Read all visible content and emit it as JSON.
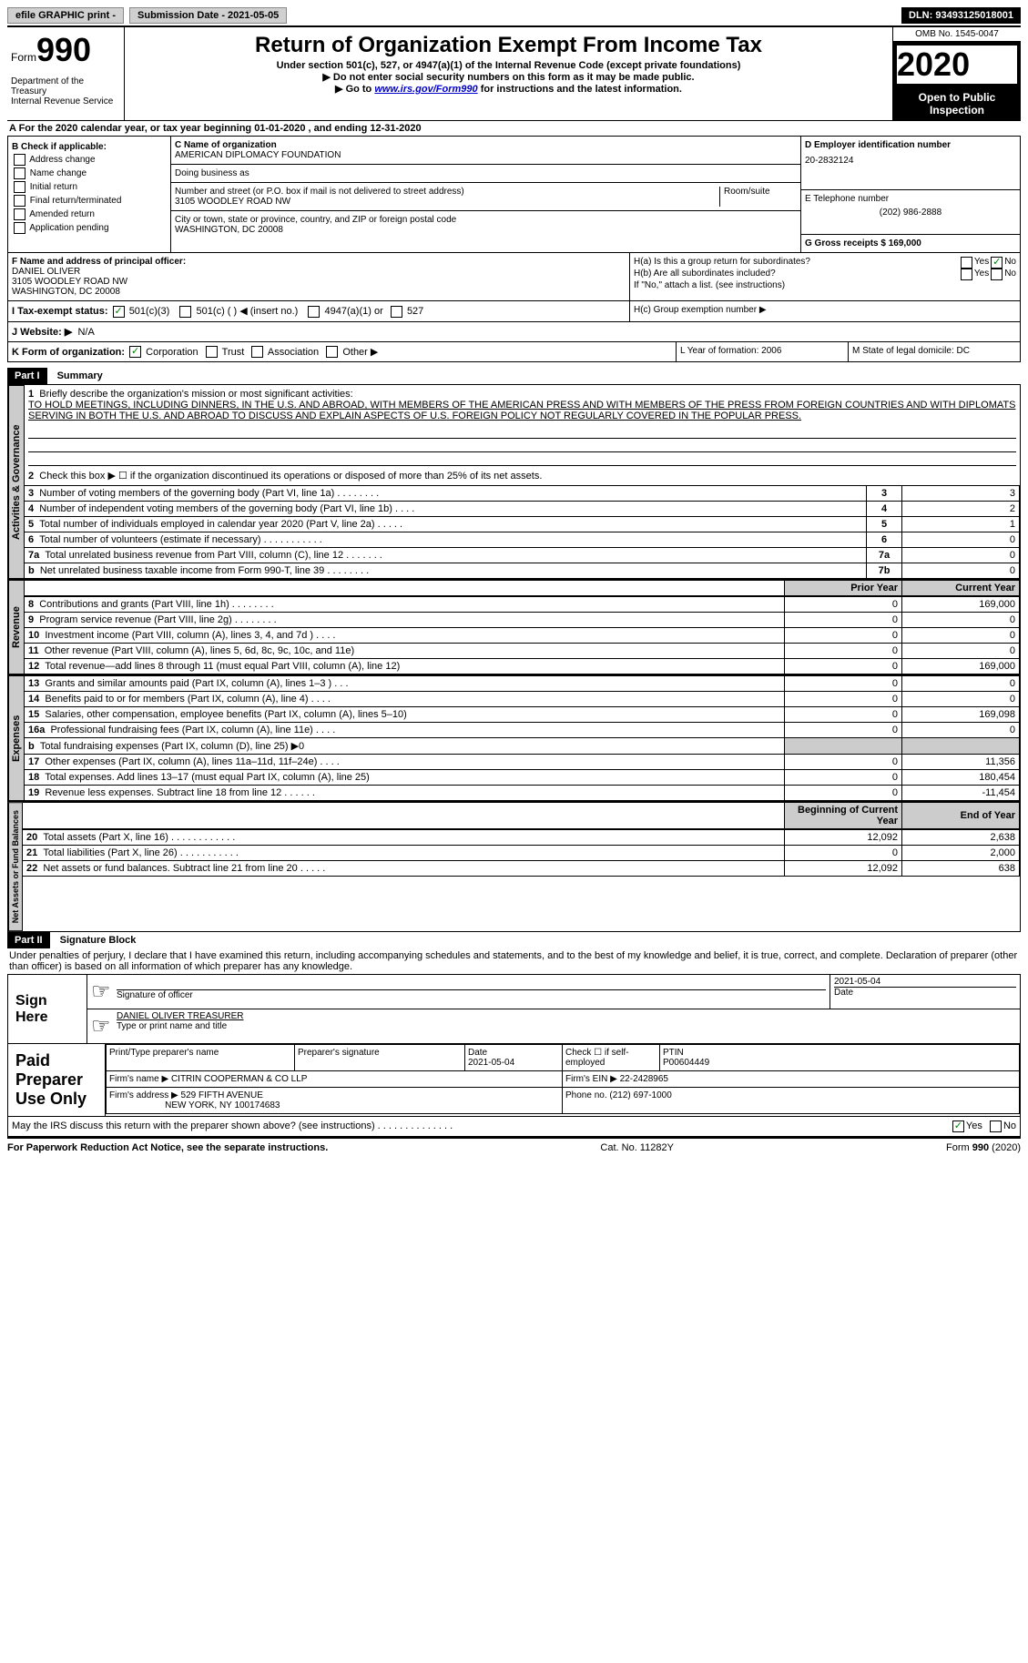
{
  "top_bar": {
    "efile": "efile GRAPHIC print -",
    "submission": "Submission Date - 2021-05-05",
    "dln": "DLN: 93493125018001"
  },
  "header": {
    "form_prefix": "Form",
    "form_num": "990",
    "dept": "Department of the Treasury\nInternal Revenue Service",
    "title": "Return of Organization Exempt From Income Tax",
    "subtitle": "Under section 501(c), 527, or 4947(a)(1) of the Internal Revenue Code (except private foundations)",
    "instr1": "▶ Do not enter social security numbers on this form as it may be made public.",
    "instr2_pre": "▶ Go to ",
    "instr2_link": "www.irs.gov/Form990",
    "instr2_post": " for instructions and the latest information.",
    "omb": "OMB No. 1545-0047",
    "year": "2020",
    "inspect": "Open to Public Inspection"
  },
  "section_a": "A For the 2020 calendar year, or tax year beginning 01-01-2020    , and ending 12-31-2020",
  "box_b": {
    "label": "B Check if applicable:",
    "opts": [
      "Address change",
      "Name change",
      "Initial return",
      "Final return/terminated",
      "Amended return",
      "Application pending"
    ]
  },
  "box_c": {
    "name_label": "C Name of organization",
    "name": "AMERICAN DIPLOMACY FOUNDATION",
    "dba_label": "Doing business as",
    "addr_label": "Number and street (or P.O. box if mail is not delivered to street address)",
    "room_label": "Room/suite",
    "addr": "3105 WOODLEY ROAD NW",
    "city_label": "City or town, state or province, country, and ZIP or foreign postal code",
    "city": "WASHINGTON, DC  20008"
  },
  "box_d": {
    "label": "D Employer identification number",
    "val": "20-2832124"
  },
  "box_e": {
    "label": "E Telephone number",
    "val": "(202) 986-2888"
  },
  "box_g": {
    "label": "G Gross receipts $ 169,000"
  },
  "box_f": {
    "label": "F Name and address of principal officer:",
    "name": "DANIEL OLIVER",
    "addr1": "3105 WOODLEY ROAD NW",
    "addr2": "WASHINGTON, DC  20008"
  },
  "box_h": {
    "a": "H(a)  Is this a group return for subordinates?",
    "b": "H(b)  Are all subordinates included?",
    "note": "If \"No,\" attach a list. (see instructions)",
    "c": "H(c)  Group exemption number ▶"
  },
  "box_i": {
    "label": "I  Tax-exempt status:",
    "o1": "501(c)(3)",
    "o2": "501(c) (  ) ◀ (insert no.)",
    "o3": "4947(a)(1) or",
    "o4": "527"
  },
  "box_j": {
    "label": "J  Website: ▶",
    "val": "N/A"
  },
  "box_k": {
    "label": "K Form of organization:",
    "o1": "Corporation",
    "o2": "Trust",
    "o3": "Association",
    "o4": "Other ▶"
  },
  "box_l": "L Year of formation: 2006",
  "box_m": "M State of legal domicile: DC",
  "part1": {
    "header": "Part I",
    "title": "Summary",
    "q1": "Briefly describe the organization's mission or most significant activities:",
    "mission": "TO HOLD MEETINGS, INCLUDING DINNERS, IN THE U.S. AND ABROAD, WITH MEMBERS OF THE AMERICAN PRESS AND WITH MEMBERS OF THE PRESS FROM FOREIGN COUNTRIES AND WITH DIPLOMATS SERVING IN BOTH THE U.S. AND ABROAD TO DISCUSS AND EXPLAIN ASPECTS OF U.S. FOREIGN POLICY NOT REGULARLY COVERED IN THE POPULAR PRESS.",
    "q2": "Check this box ▶ ☐  if the organization discontinued its operations or disposed of more than 25% of its net assets.",
    "rows_ag": [
      {
        "n": "3",
        "t": "Number of voting members of the governing body (Part VI, line 1a)  .   .   .   .   .   .   .   .",
        "box": "3",
        "v": "3"
      },
      {
        "n": "4",
        "t": "Number of independent voting members of the governing body (Part VI, line 1b)  .   .   .   .",
        "box": "4",
        "v": "2"
      },
      {
        "n": "5",
        "t": "Total number of individuals employed in calendar year 2020 (Part V, line 2a)  .   .   .   .   .",
        "box": "5",
        "v": "1"
      },
      {
        "n": "6",
        "t": "Total number of volunteers (estimate if necessary)   .   .   .   .   .   .   .   .   .   .   .",
        "box": "6",
        "v": "0"
      },
      {
        "n": "7a",
        "t": "Total unrelated business revenue from Part VIII, column (C), line 12   .   .   .   .   .   .   .",
        "box": "7a",
        "v": "0"
      },
      {
        "n": "b",
        "t": "Net unrelated business taxable income from Form 990-T, line 39   .   .   .   .   .   .   .   .",
        "box": "7b",
        "v": "0"
      }
    ],
    "h_prior": "Prior Year",
    "h_current": "Current Year",
    "rows_rev": [
      {
        "n": "8",
        "t": "Contributions and grants (Part VIII, line 1h)   .   .   .   .   .   .   .   .",
        "p": "0",
        "c": "169,000"
      },
      {
        "n": "9",
        "t": "Program service revenue (Part VIII, line 2g)   .   .   .   .   .   .   .   .",
        "p": "0",
        "c": "0"
      },
      {
        "n": "10",
        "t": "Investment income (Part VIII, column (A), lines 3, 4, and 7d )   .   .   .   .",
        "p": "0",
        "c": "0"
      },
      {
        "n": "11",
        "t": "Other revenue (Part VIII, column (A), lines 5, 6d, 8c, 9c, 10c, and 11e)",
        "p": "0",
        "c": "0"
      },
      {
        "n": "12",
        "t": "Total revenue—add lines 8 through 11 (must equal Part VIII, column (A), line 12)",
        "p": "0",
        "c": "169,000"
      }
    ],
    "rows_exp": [
      {
        "n": "13",
        "t": "Grants and similar amounts paid (Part IX, column (A), lines 1–3 )  .   .   .",
        "p": "0",
        "c": "0"
      },
      {
        "n": "14",
        "t": "Benefits paid to or for members (Part IX, column (A), line 4)  .   .   .   .",
        "p": "0",
        "c": "0"
      },
      {
        "n": "15",
        "t": "Salaries, other compensation, employee benefits (Part IX, column (A), lines 5–10)",
        "p": "0",
        "c": "169,098"
      },
      {
        "n": "16a",
        "t": "Professional fundraising fees (Part IX, column (A), line 11e)  .   .   .   .",
        "p": "0",
        "c": "0"
      },
      {
        "n": "b",
        "t": "Total fundraising expenses (Part IX, column (D), line 25) ▶0",
        "p": "",
        "c": "",
        "grey": true
      },
      {
        "n": "17",
        "t": "Other expenses (Part IX, column (A), lines 11a–11d, 11f–24e)  .   .   .   .",
        "p": "0",
        "c": "11,356"
      },
      {
        "n": "18",
        "t": "Total expenses. Add lines 13–17 (must equal Part IX, column (A), line 25)",
        "p": "0",
        "c": "180,454"
      },
      {
        "n": "19",
        "t": "Revenue less expenses. Subtract line 18 from line 12  .   .   .   .   .   .",
        "p": "0",
        "c": "-11,454"
      }
    ],
    "h_begin": "Beginning of Current Year",
    "h_end": "End of Year",
    "rows_na": [
      {
        "n": "20",
        "t": "Total assets (Part X, line 16)  .   .   .   .   .   .   .   .   .   .   .   .",
        "p": "12,092",
        "c": "2,638"
      },
      {
        "n": "21",
        "t": "Total liabilities (Part X, line 26)  .   .   .   .   .   .   .   .   .   .   .",
        "p": "0",
        "c": "2,000"
      },
      {
        "n": "22",
        "t": "Net assets or fund balances. Subtract line 21 from line 20  .   .   .   .   .",
        "p": "12,092",
        "c": "638"
      }
    ],
    "vlab_ag": "Activities & Governance",
    "vlab_rev": "Revenue",
    "vlab_exp": "Expenses",
    "vlab_na": "Net Assets or Fund Balances"
  },
  "part2": {
    "header": "Part II",
    "title": "Signature Block",
    "decl": "Under penalties of perjury, I declare that I have examined this return, including accompanying schedules and statements, and to the best of my knowledge and belief, it is true, correct, and complete. Declaration of preparer (other than officer) is based on all information of which preparer has any knowledge.",
    "sign_here": "Sign Here",
    "sig_officer": "Signature of officer",
    "sig_date": "2021-05-04",
    "date_label": "Date",
    "officer_name": "DANIEL OLIVER  TREASURER",
    "type_name": "Type or print name and title",
    "paid_label": "Paid Preparer Use Only",
    "pp_name_label": "Print/Type preparer's name",
    "pp_sig_label": "Preparer's signature",
    "pp_date_label": "Date",
    "pp_date": "2021-05-04",
    "pp_check": "Check ☐ if self-employed",
    "ptin_label": "PTIN",
    "ptin": "P00604449",
    "firm_name_label": "Firm's name   ▶",
    "firm_name": "CITRIN COOPERMAN & CO LLP",
    "firm_ein_label": "Firm's EIN ▶",
    "firm_ein": "22-2428965",
    "firm_addr_label": "Firm's address ▶",
    "firm_addr": "529 FIFTH AVENUE",
    "firm_city": "NEW YORK, NY  100174683",
    "phone_label": "Phone no.",
    "phone": "(212) 697-1000",
    "discuss": "May the IRS discuss this return with the preparer shown above? (see instructions)   .   .   .   .   .   .   .   .   .   .   .   .   .   ."
  },
  "footer": {
    "left": "For Paperwork Reduction Act Notice, see the separate instructions.",
    "mid": "Cat. No. 11282Y",
    "right": "Form 990 (2020)"
  }
}
